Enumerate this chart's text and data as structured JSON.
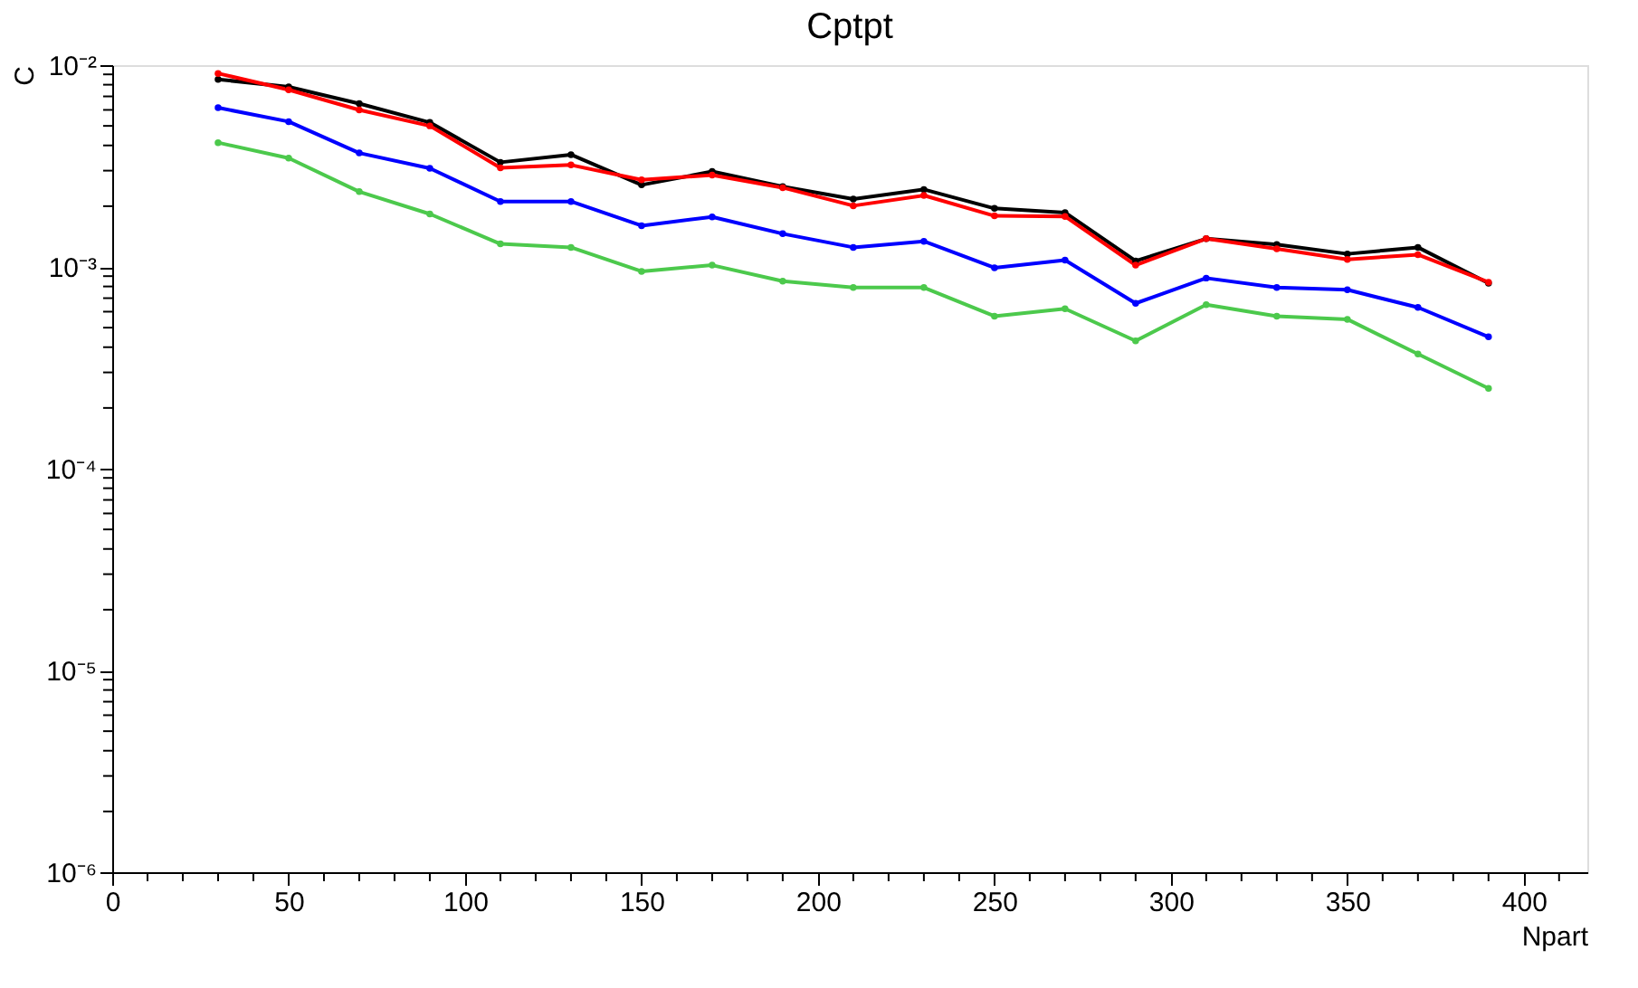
{
  "chart_data": {
    "type": "line",
    "title": "Cptpt",
    "xlabel": "Npart",
    "ylabel": "C",
    "x": [
      30,
      50,
      70,
      90,
      110,
      130,
      150,
      170,
      190,
      210,
      230,
      250,
      270,
      290,
      310,
      330,
      350,
      370,
      390
    ],
    "series": [
      {
        "color": "#000000",
        "values": [
          0.0085,
          0.0078,
          0.00645,
          0.0052,
          0.0033,
          0.0036,
          0.00255,
          0.00297,
          0.0025,
          0.00217,
          0.00242,
          0.00195,
          0.00186,
          0.00107,
          0.00138,
          0.00129,
          0.00116,
          0.00125,
          0.00083
        ]
      },
      {
        "color": "#ff0000",
        "values": [
          0.0091,
          0.00755,
          0.006,
          0.005,
          0.0031,
          0.0032,
          0.0027,
          0.00285,
          0.00247,
          0.00201,
          0.00226,
          0.00179,
          0.00178,
          0.00102,
          0.00138,
          0.00123,
          0.00109,
          0.00115,
          0.00084
        ]
      },
      {
        "color": "#0000ff",
        "values": [
          0.00615,
          0.00525,
          0.00367,
          0.00308,
          0.00211,
          0.00211,
          0.0016,
          0.00177,
          0.00146,
          0.00125,
          0.00134,
          0.00099,
          0.00108,
          0.00066,
          0.00088,
          0.00079,
          0.00077,
          0.00063,
          0.00045
        ]
      },
      {
        "color": "#4cc94c",
        "values": [
          0.00413,
          0.00346,
          0.00236,
          0.00183,
          0.0013,
          0.00125,
          0.00095,
          0.00102,
          0.00085,
          0.00079,
          0.00079,
          0.00057,
          0.00062,
          0.00043,
          0.00065,
          0.00057,
          0.00055,
          0.00037,
          0.00025
        ]
      }
    ],
    "log": "y",
    "ylim": [
      1e-06,
      0.01
    ],
    "xlim": [
      0,
      418
    ],
    "yticks": [
      {
        "value": 1e-06,
        "label": "10⁻⁶"
      },
      {
        "value": 2e-06,
        "label": null
      },
      {
        "value": 3e-06,
        "label": null
      },
      {
        "value": 4e-06,
        "label": null
      },
      {
        "value": 5e-06,
        "label": null
      },
      {
        "value": 6e-06,
        "label": null
      },
      {
        "value": 7e-06,
        "label": null
      },
      {
        "value": 8e-06,
        "label": null
      },
      {
        "value": 9e-06,
        "label": null
      },
      {
        "value": 1e-05,
        "label": "10⁻⁵"
      },
      {
        "value": 2e-05,
        "label": null
      },
      {
        "value": 3e-05,
        "label": null
      },
      {
        "value": 4e-05,
        "label": null
      },
      {
        "value": 5e-05,
        "label": null
      },
      {
        "value": 6e-05,
        "label": null
      },
      {
        "value": 7e-05,
        "label": null
      },
      {
        "value": 8e-05,
        "label": null
      },
      {
        "value": 9e-05,
        "label": null
      },
      {
        "value": 0.0001,
        "label": "10⁻⁴"
      },
      {
        "value": 0.0002,
        "label": null
      },
      {
        "value": 0.0003,
        "label": null
      },
      {
        "value": 0.0004,
        "label": null
      },
      {
        "value": 0.0005,
        "label": null
      },
      {
        "value": 0.0006,
        "label": null
      },
      {
        "value": 0.0007,
        "label": null
      },
      {
        "value": 0.0008,
        "label": null
      },
      {
        "value": 0.0009,
        "label": null
      },
      {
        "value": 0.001,
        "label": "10⁻³"
      },
      {
        "value": 0.002,
        "label": null
      },
      {
        "value": 0.003,
        "label": null
      },
      {
        "value": 0.004,
        "label": null
      },
      {
        "value": 0.005,
        "label": null
      },
      {
        "value": 0.006,
        "label": null
      },
      {
        "value": 0.007,
        "label": null
      },
      {
        "value": 0.008,
        "label": null
      },
      {
        "value": 0.009,
        "label": null
      },
      {
        "value": 0.01,
        "label": "10⁻²"
      }
    ],
    "xticks": [
      0,
      {
        "value": 10,
        "label": null
      },
      {
        "value": 20,
        "label": null
      },
      {
        "value": 30,
        "label": null
      },
      {
        "value": 40,
        "label": null
      },
      50,
      {
        "value": 60,
        "label": null
      },
      {
        "value": 70,
        "label": null
      },
      {
        "value": 80,
        "label": null
      },
      {
        "value": 90,
        "label": null
      },
      100,
      {
        "value": 110,
        "label": null
      },
      {
        "value": 120,
        "label": null
      },
      {
        "value": 130,
        "label": null
      },
      {
        "value": 140,
        "label": null
      },
      150,
      {
        "value": 160,
        "label": null
      },
      {
        "value": 170,
        "label": null
      },
      {
        "value": 180,
        "label": null
      },
      {
        "value": 190,
        "label": null
      },
      200,
      {
        "value": 210,
        "label": null
      },
      {
        "value": 220,
        "label": null
      },
      {
        "value": 230,
        "label": null
      },
      {
        "value": 240,
        "label": null
      },
      250,
      {
        "value": 260,
        "label": null
      },
      {
        "value": 270,
        "label": null
      },
      {
        "value": 280,
        "label": null
      },
      {
        "value": 290,
        "label": null
      },
      300,
      {
        "value": 310,
        "label": null
      },
      {
        "value": 320,
        "label": null
      },
      {
        "value": 330,
        "label": null
      },
      {
        "value": 340,
        "label": null
      },
      350,
      {
        "value": 360,
        "label": null
      },
      {
        "value": 370,
        "label": null
      },
      {
        "value": 380,
        "label": null
      },
      {
        "value": 390,
        "label": null
      },
      400,
      {
        "value": 410,
        "label": null
      }
    ],
    "grid": false,
    "legend": false,
    "marker": "circle",
    "line_style": "solid"
  }
}
